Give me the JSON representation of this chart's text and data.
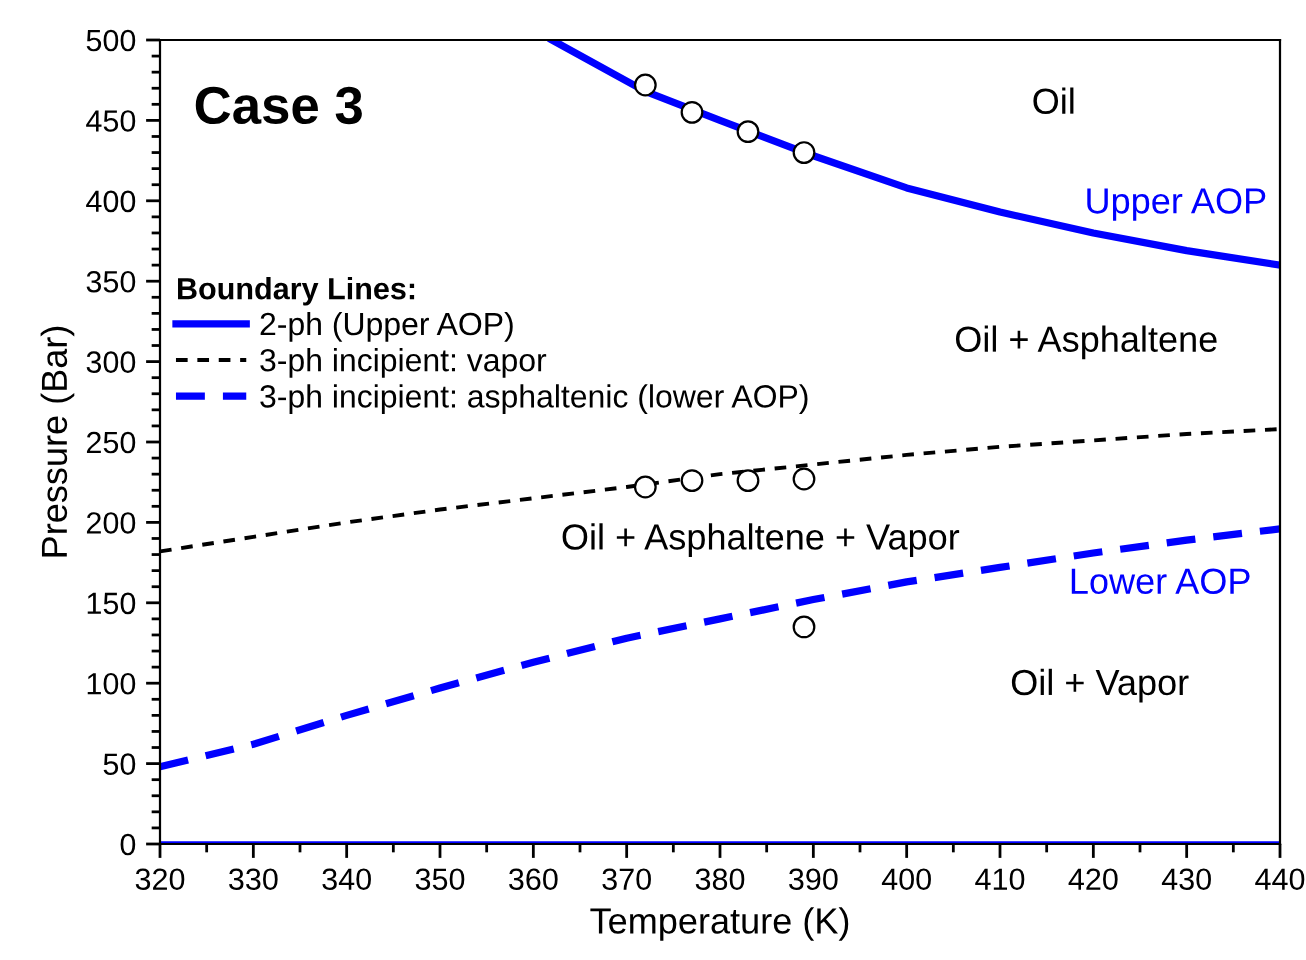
{
  "chart_data": {
    "type": "line",
    "xlabel": "Temperature (K)",
    "ylabel": "Pressure (Bar)",
    "legend_title": "Boundary Lines:",
    "legend": "left",
    "xlim": [
      320,
      440
    ],
    "xticks": [
      320,
      330,
      340,
      350,
      360,
      370,
      380,
      390,
      400,
      410,
      420,
      430,
      440
    ],
    "ylim": [
      0,
      500
    ],
    "yticks": [
      0,
      50,
      100,
      150,
      200,
      250,
      300,
      350,
      400,
      450,
      500
    ],
    "grid": false,
    "series": [
      {
        "name": "2-ph (Upper AOP)",
        "color": "#0000ff",
        "line_style": "solid",
        "x": [
          362,
          372,
          380,
          390,
          400,
          410,
          420,
          430,
          440
        ],
        "values": [
          500,
          468,
          450,
          428,
          408,
          393,
          380,
          369,
          360
        ]
      },
      {
        "name": "3-ph incipient: vapor",
        "color": "#000000",
        "line_style": "dashed",
        "x": [
          320,
          330,
          340,
          350,
          360,
          370,
          380,
          390,
          400,
          410,
          420,
          430,
          440
        ],
        "values": [
          182,
          191,
          200,
          208,
          215,
          222,
          230,
          236,
          242,
          247,
          251,
          255,
          258
        ]
      },
      {
        "name": "3-ph incipient: asphaltenic (lower AOP)",
        "color": "#0000ff",
        "line_style": "dashed",
        "x": [
          320,
          330,
          340,
          350,
          360,
          370,
          380,
          390,
          400,
          410,
          420,
          430,
          440
        ],
        "values": [
          48,
          62,
          80,
          97,
          113,
          128,
          140,
          152,
          163,
          172,
          181,
          189,
          196
        ]
      },
      {
        "color": "#0000ff",
        "line_style": "solid",
        "x": [
          320,
          440
        ],
        "values": [
          0,
          0
        ]
      },
      {
        "type": "scatter",
        "marker": "circle",
        "color": "#000000",
        "x": [
          372,
          377,
          383,
          389,
          372,
          377,
          383,
          389,
          389
        ],
        "values": [
          472,
          455,
          443,
          430,
          222,
          226,
          226,
          227,
          135
        ]
      }
    ],
    "annotations": [
      "Case 3",
      "Oil",
      "Upper AOP",
      "Oil + Asphaltene",
      "Oil + Asphaltene + Vapor",
      "Lower AOP",
      "Oil + Vapor"
    ]
  }
}
